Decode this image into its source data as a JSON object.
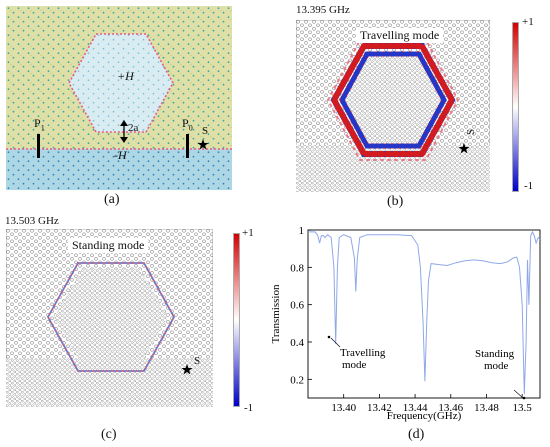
{
  "panel_a": {
    "label": "(a)",
    "upper_region": "+H",
    "lower_region": "-H",
    "gap_label": "2a",
    "port_left": "P",
    "port_left_sub": "1",
    "port_right": "P",
    "port_right_sub": "0",
    "source_label": "S"
  },
  "panel_b": {
    "label": "(b)",
    "frequency": "13.395 GHz",
    "mode": "Travelling mode",
    "source_label": "S",
    "colorbar_max": "+1",
    "colorbar_min": "-1"
  },
  "panel_c": {
    "label": "(c)",
    "frequency": "13.503 GHz",
    "mode": "Standing mode",
    "source_label": "S",
    "colorbar_max": "+1",
    "colorbar_min": "-1"
  },
  "panel_d": {
    "label": "(d)",
    "annotation_travelling": "Travelling\nmode",
    "annotation_standing": "Standing\nmode"
  },
  "chart_data": {
    "type": "line",
    "xlabel": "Frequency(GHz)",
    "ylabel": "Transmission",
    "xlim": [
      13.38,
      13.51
    ],
    "ylim": [
      0.1,
      1.0
    ],
    "x_ticks": [
      "13.40",
      "13.42",
      "13.44",
      "13.46",
      "13.48",
      "13.5"
    ],
    "y_ticks": [
      "0.2",
      "0.4",
      "0.6",
      "0.8",
      "1"
    ],
    "series": [
      {
        "color": "#8fa8e8",
        "x": [
          13.38,
          13.384,
          13.3855,
          13.3865,
          13.3875,
          13.3885,
          13.3895,
          13.391,
          13.393,
          13.3945,
          13.3955,
          13.3965,
          13.3975,
          13.4,
          13.404,
          13.406,
          13.4068,
          13.4076,
          13.409,
          13.413,
          13.42,
          13.43,
          13.438,
          13.4415,
          13.443,
          13.4445,
          13.4455,
          13.4465,
          13.4475,
          13.449,
          13.453,
          13.458,
          13.463,
          13.468,
          13.473,
          13.478,
          13.483,
          13.488,
          13.492,
          13.495,
          13.497,
          13.4985,
          13.5,
          13.5012,
          13.5022,
          13.503,
          13.5038,
          13.5048,
          13.5058,
          13.5068,
          13.5078,
          13.509,
          13.51
        ],
        "y": [
          0.99,
          0.99,
          0.97,
          0.93,
          0.97,
          0.97,
          0.96,
          0.975,
          0.96,
          0.8,
          0.39,
          0.8,
          0.96,
          0.975,
          0.96,
          0.85,
          0.67,
          0.85,
          0.96,
          0.975,
          0.975,
          0.975,
          0.97,
          0.92,
          0.8,
          0.5,
          0.19,
          0.5,
          0.73,
          0.82,
          0.815,
          0.81,
          0.825,
          0.835,
          0.84,
          0.835,
          0.825,
          0.82,
          0.83,
          0.85,
          0.855,
          0.8,
          0.6,
          0.12,
          0.4,
          0.84,
          0.6,
          0.97,
          0.99,
          0.97,
          0.93,
          0.96,
          0.95
        ]
      }
    ]
  }
}
